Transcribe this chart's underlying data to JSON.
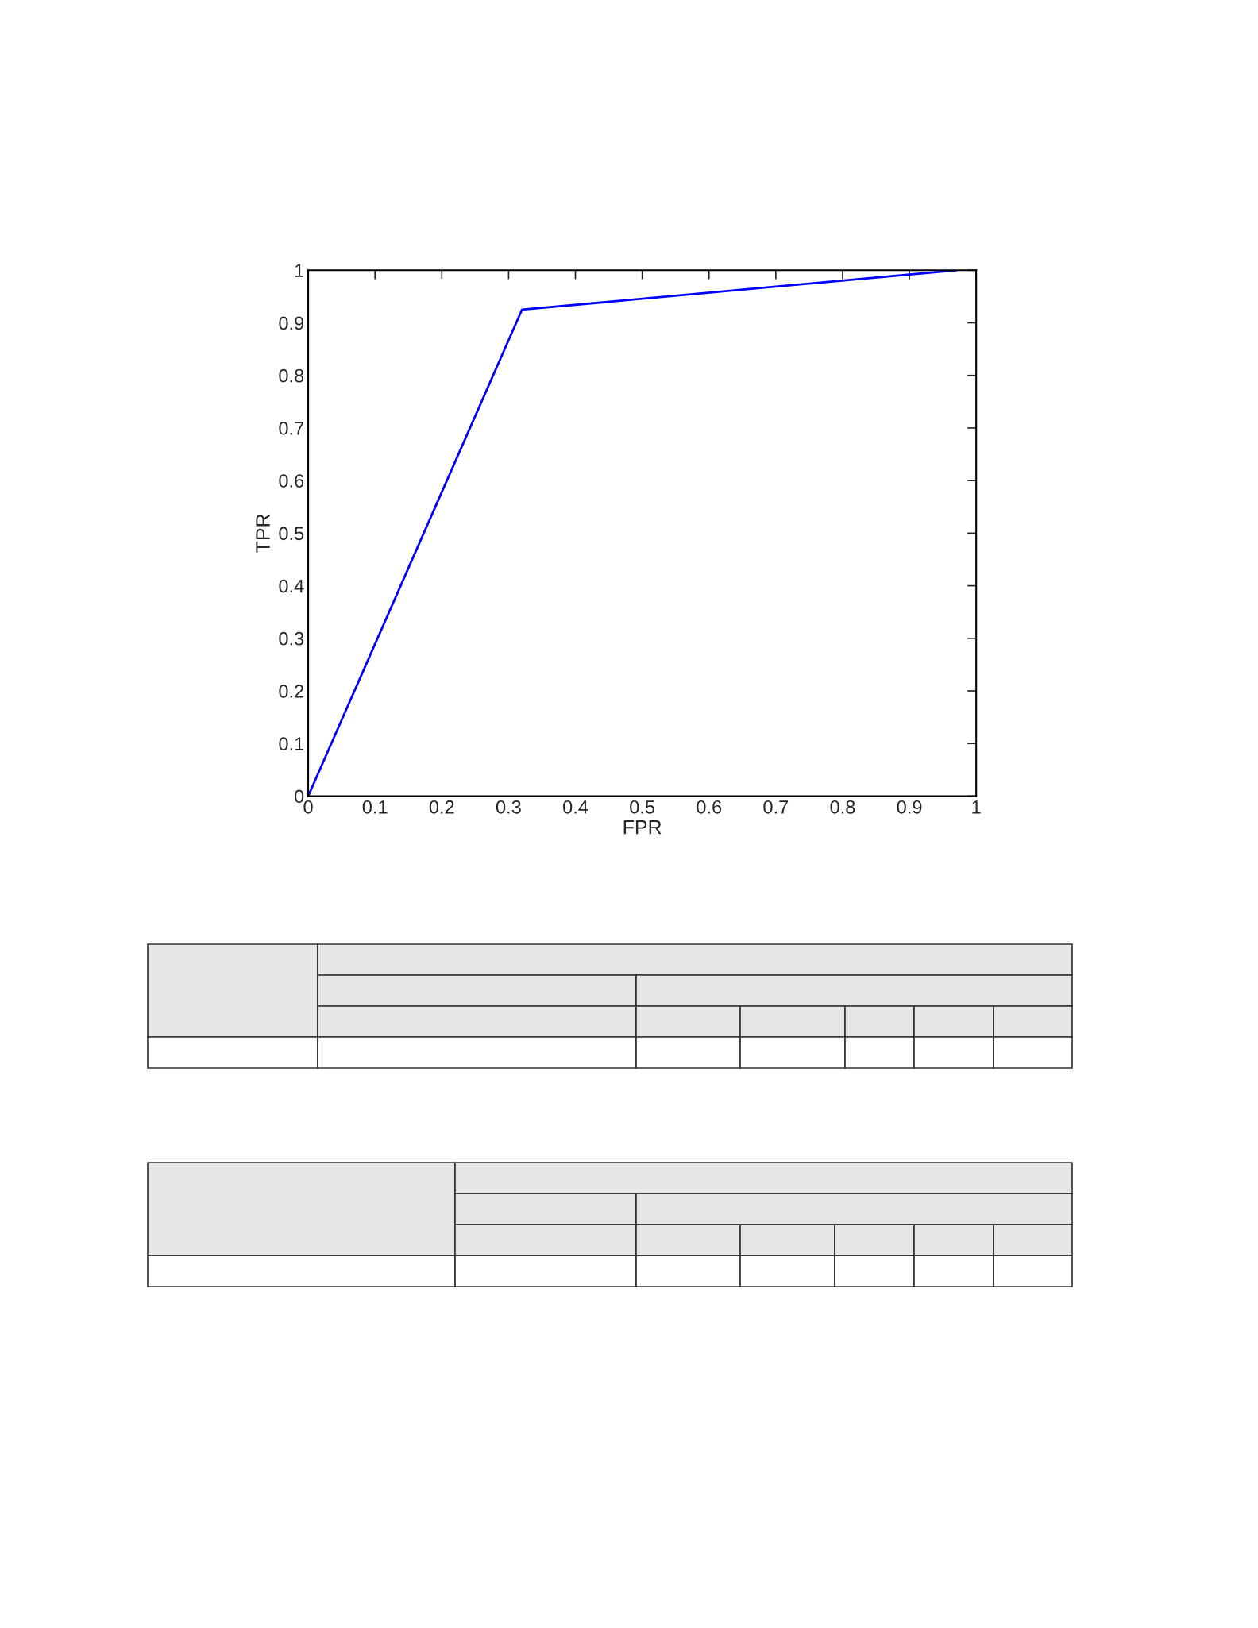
{
  "chart_data": {
    "type": "line",
    "xlabel": "FPR",
    "ylabel": "TPR",
    "x": [
      0,
      0.32,
      0.97
    ],
    "series": [
      {
        "color": "#0000ff",
        "values": [
          0,
          0.925,
          1.0
        ]
      }
    ],
    "xlim": [
      0,
      1
    ],
    "ylim": [
      0,
      1
    ],
    "xticks": [
      0,
      0.1,
      0.2,
      0.3,
      0.4,
      0.5,
      0.6,
      0.7,
      0.8,
      0.9,
      1
    ],
    "yticks": [
      0,
      0.1,
      0.2,
      0.3,
      0.4,
      0.5,
      0.6,
      0.7,
      0.8,
      0.9,
      1
    ],
    "grid": false,
    "legend": false,
    "marker": "none",
    "line_style": "solid"
  }
}
